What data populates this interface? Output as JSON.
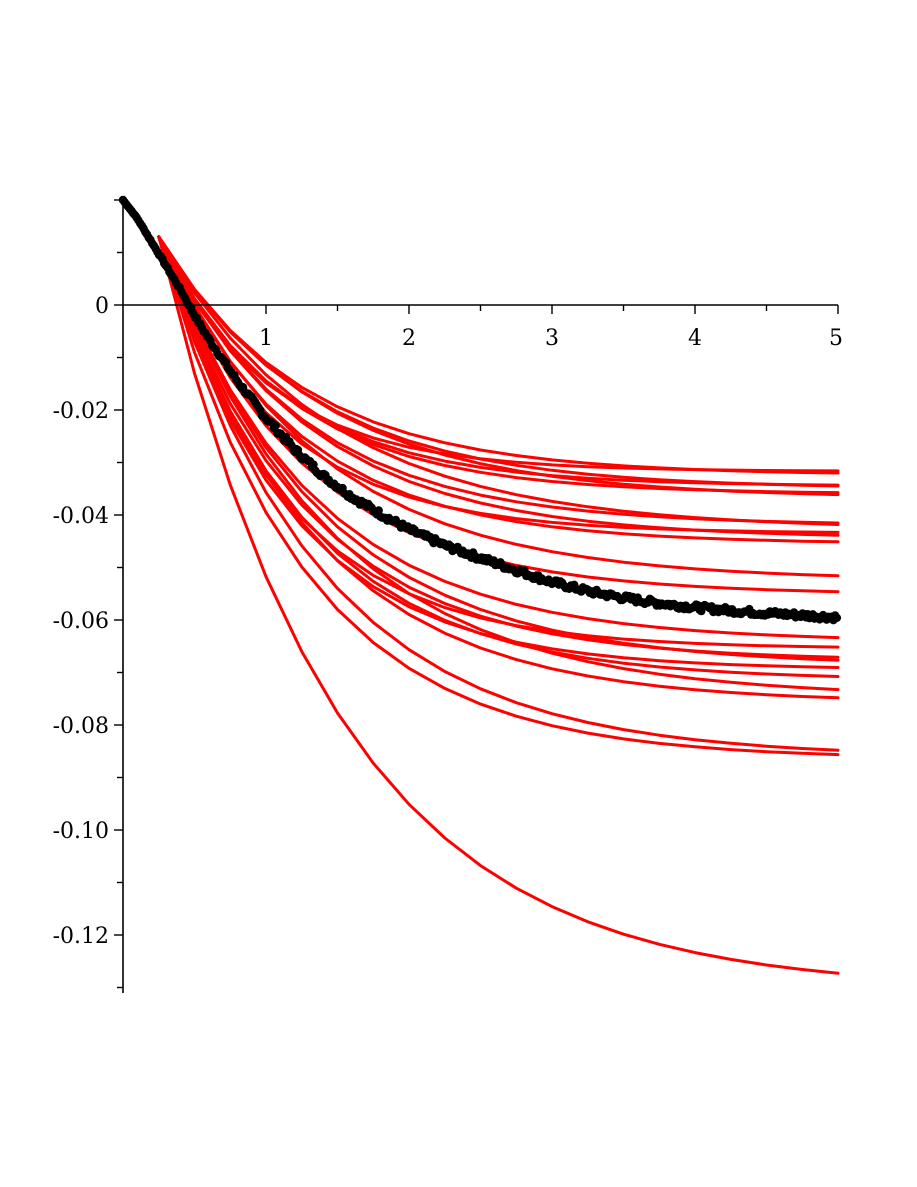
{
  "chart_data": {
    "type": "line",
    "title": "",
    "xlabel": "",
    "ylabel": "",
    "xlim": [
      0,
      5
    ],
    "ylim": [
      -0.13,
      0.02
    ],
    "grid": false,
    "legend": "none",
    "x_ticks": [
      {
        "value": 1,
        "label": "1"
      },
      {
        "value": 2,
        "label": "2"
      },
      {
        "value": 3,
        "label": "3"
      },
      {
        "value": 4,
        "label": "4"
      },
      {
        "value": 5,
        "label": "5"
      }
    ],
    "y_ticks": [
      {
        "value": 0,
        "label": "0"
      },
      {
        "value": -0.02,
        "label": "-0.02"
      },
      {
        "value": -0.04,
        "label": "-0.04"
      },
      {
        "value": -0.06,
        "label": "-0.06"
      },
      {
        "value": -0.08,
        "label": "-0.08"
      },
      {
        "value": -0.1,
        "label": "-0.10"
      },
      {
        "value": -0.12,
        "label": "-0.12"
      }
    ],
    "x_minor_step": 0.5,
    "y_minor_step": 0.01,
    "colors": {
      "simulations": "#ff0000",
      "mean": "#000000",
      "axes": "#000000"
    },
    "mean_curve": {
      "style": "points",
      "x": [
        0,
        0.1,
        0.2,
        0.3,
        0.4,
        0.5,
        0.6,
        0.7,
        0.8,
        0.9,
        1.0,
        1.2,
        1.4,
        1.6,
        1.8,
        2.0,
        2.25,
        2.5,
        2.75,
        3.0,
        3.25,
        3.5,
        3.75,
        4.0,
        4.25,
        4.5,
        4.75,
        5.0
      ],
      "y": [
        0.02,
        0.0165,
        0.012,
        0.0075,
        0.003,
        -0.002,
        -0.0065,
        -0.0105,
        -0.0145,
        -0.018,
        -0.0215,
        -0.0275,
        -0.0325,
        -0.0365,
        -0.0398,
        -0.0428,
        -0.0458,
        -0.0482,
        -0.0505,
        -0.0528,
        -0.0545,
        -0.0558,
        -0.0568,
        -0.0576,
        -0.0582,
        -0.0587,
        -0.0591,
        -0.0595
      ]
    },
    "simulations": {
      "start": [
        0.25,
        0.013
      ],
      "x": [
        0.25,
        0.5,
        0.75,
        1.0,
        1.25,
        1.5,
        1.75,
        2.0,
        2.25,
        2.5,
        2.75,
        3.0,
        3.25,
        3.5,
        3.75,
        4.0,
        4.25,
        4.5,
        4.75,
        5.0
      ],
      "finals": [
        -0.0317,
        -0.0324,
        -0.0345,
        -0.035,
        -0.036,
        -0.0368,
        -0.042,
        -0.0428,
        -0.0435,
        -0.0445,
        -0.0455,
        -0.0525,
        -0.0552,
        -0.0642,
        -0.0655,
        -0.0678,
        -0.0688,
        -0.0695,
        -0.0715,
        -0.0748,
        -0.0758,
        -0.0862,
        -0.0865,
        -0.1305
      ],
      "rates": [
        1.3,
        1.0,
        1.15,
        0.95,
        1.1,
        0.9,
        1.0,
        0.85,
        1.2,
        0.95,
        1.05,
        0.9,
        1.0,
        0.95,
        1.15,
        1.0,
        0.9,
        1.1,
        1.0,
        0.85,
        0.95,
        0.9,
        1.0,
        0.8
      ]
    }
  }
}
